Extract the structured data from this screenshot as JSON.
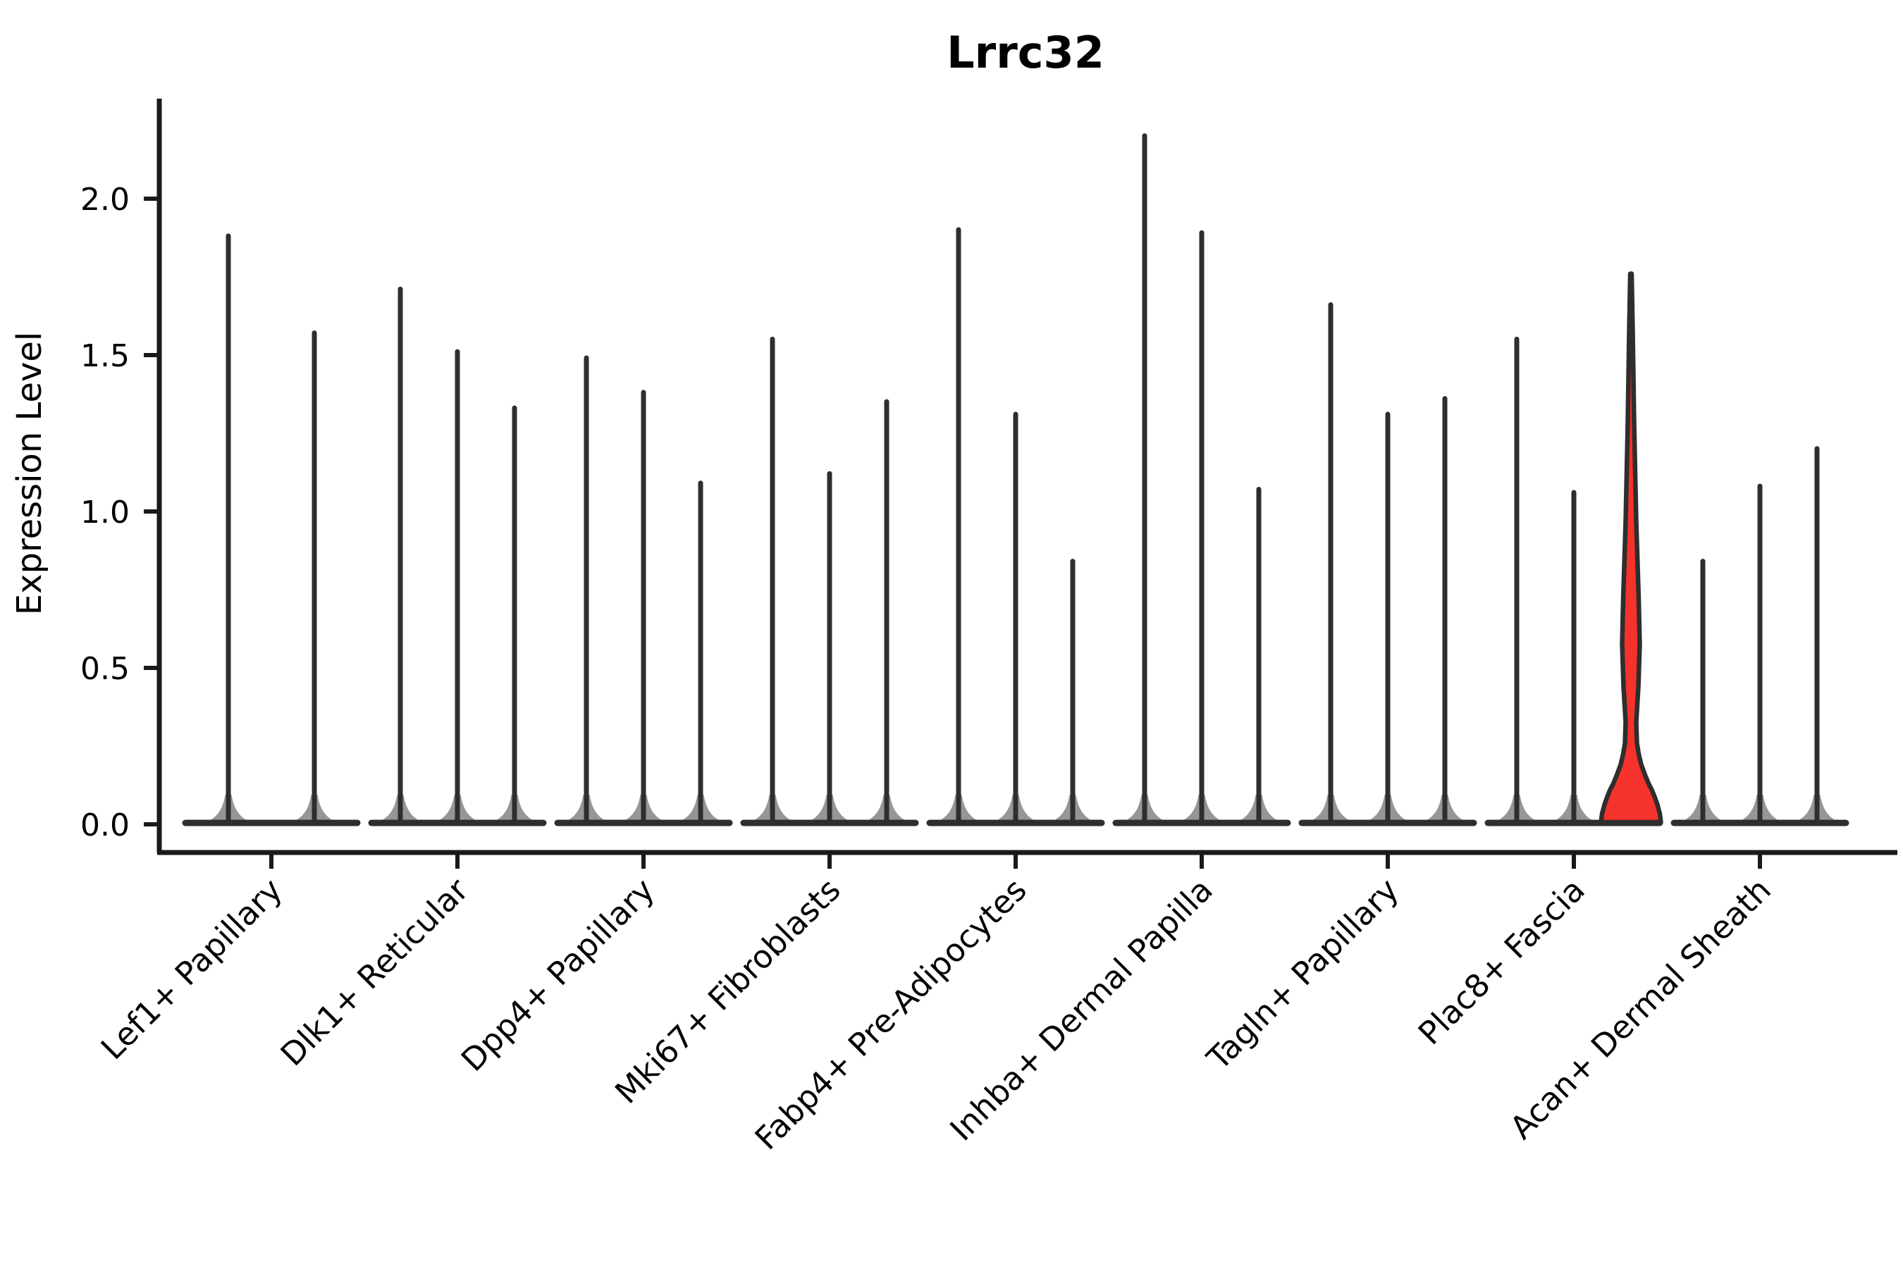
{
  "figure": {
    "title": "Lrrc32"
  },
  "chart_data": {
    "type": "violin",
    "title": "Lrrc32",
    "xlabel": "",
    "ylabel": "Expression Level",
    "ytick_labels": [
      "2.0",
      "1.5",
      "1.0",
      "0.5",
      "0.0"
    ],
    "ytick_values": [
      2.0,
      1.5,
      1.0,
      0.5,
      0.0
    ],
    "ylim": [
      0,
      2.32
    ],
    "grid": false,
    "legend_position": "none",
    "categories": [
      "Lef1+ Papillary",
      "Dlk1+ Reticular",
      "Dpp4+ Papillary",
      "Mki67+ Fibroblasts",
      "Fabp4+ Pre-Adipocytes",
      "Inhba+ Dermal Papilla",
      "Tagln+ Papillary",
      "Plac8+ Fascia",
      "Acan+ Dermal Sheath"
    ],
    "groups": [
      {
        "category": "Lef1+ Papillary",
        "violins": [
          {
            "max": 1.89
          },
          {
            "max": 1.58
          }
        ]
      },
      {
        "category": "Dlk1+ Reticular",
        "violins": [
          {
            "max": 1.72
          },
          {
            "max": 1.52
          },
          {
            "max": 1.34
          }
        ]
      },
      {
        "category": "Dpp4+ Papillary",
        "violins": [
          {
            "max": 1.5
          },
          {
            "max": 1.39
          },
          {
            "max": 1.1
          }
        ]
      },
      {
        "category": "Mki67+ Fibroblasts",
        "violins": [
          {
            "max": 1.56
          },
          {
            "max": 1.13
          },
          {
            "max": 1.36
          }
        ]
      },
      {
        "category": "Fabp4+ Pre-Adipocytes",
        "violins": [
          {
            "max": 1.91
          },
          {
            "max": 1.32
          },
          {
            "max": 0.85
          }
        ]
      },
      {
        "category": "Inhba+ Dermal Papilla",
        "violins": [
          {
            "max": 2.21
          },
          {
            "max": 1.9
          },
          {
            "max": 1.08
          }
        ]
      },
      {
        "category": "Tagln+ Papillary",
        "violins": [
          {
            "max": 1.67
          },
          {
            "max": 1.32
          },
          {
            "max": 1.37
          }
        ]
      },
      {
        "category": "Plac8+ Fascia",
        "violins": [
          {
            "max": 1.56
          },
          {
            "max": 1.07
          },
          {
            "max": 1.76,
            "highlight": true
          }
        ]
      },
      {
        "category": "Acan+ Dermal Sheath",
        "violins": [
          {
            "max": 0.85
          },
          {
            "max": 1.09
          },
          {
            "max": 1.21
          }
        ]
      }
    ],
    "colors": {
      "highlight_fill": "#f5322b",
      "violin_stroke": "#2e2e2e",
      "axis_color": "#1a1a1a",
      "text_color": "#000000",
      "background": "#ffffff"
    }
  }
}
